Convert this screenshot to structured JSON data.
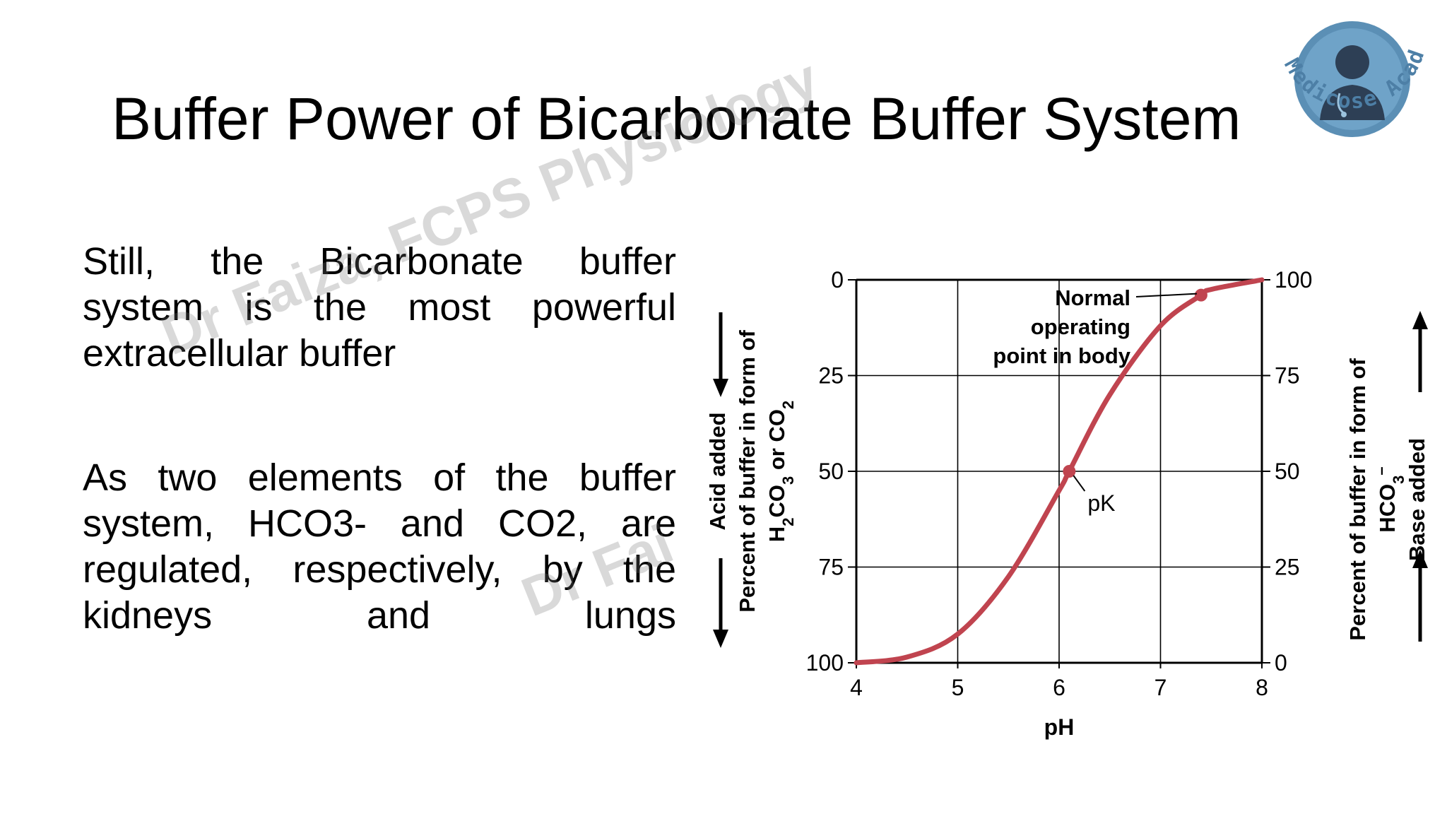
{
  "slide": {
    "title": "Buffer Power of Bicarbonate Buffer System",
    "para1_lines": [
      "Still, the Bicarbonate buffer",
      "system is the most powerful",
      "extracellular buffer"
    ],
    "para2_lines": [
      "As two elements of the buffer",
      "system, HCO3- and CO2, are",
      "regulated, respectively, by the",
      "kidneys and lungs"
    ],
    "watermark_main": "Dr Faiza, FCPS Physiology",
    "watermark_partial": "Dr Fai",
    "logo_text": "Medicose Academics"
  },
  "chart_data": {
    "type": "line",
    "x": [
      4.0,
      4.5,
      5.0,
      5.5,
      6.0,
      6.1,
      6.5,
      7.0,
      7.4,
      7.5,
      8.0
    ],
    "y_right": [
      0.0,
      1.5,
      7.5,
      22.5,
      45.0,
      50.0,
      70.0,
      88.0,
      96.0,
      97.5,
      100.0
    ],
    "xlabel": "pH",
    "x_ticks": [
      "4",
      "5",
      "6",
      "7",
      "8"
    ],
    "xlim": [
      4,
      8
    ],
    "left_ticks": [
      "0",
      "25",
      "50",
      "75",
      "100"
    ],
    "right_ticks": [
      "100",
      "75",
      "50",
      "25",
      "0"
    ],
    "ylim": [
      0,
      100
    ],
    "left_label_line1": "Percent of buffer in form of",
    "left_label_line2_parts": [
      "H",
      "2",
      "CO",
      "3",
      " or CO",
      "2"
    ],
    "left_arrow_label": "Acid added",
    "right_label_line1": "Percent of buffer in form of",
    "right_label_line2_parts": [
      "HCO",
      "3",
      "–"
    ],
    "right_arrow_label": "Base added",
    "annotations": [
      {
        "label_lines": [
          "Normal",
          "operating",
          "point in body"
        ],
        "x": 7.4,
        "y_right": 96
      },
      {
        "label_lines": [
          "pK"
        ],
        "x": 6.1,
        "y_right": 50
      }
    ],
    "grid": true,
    "line_color": "#c0444f"
  }
}
